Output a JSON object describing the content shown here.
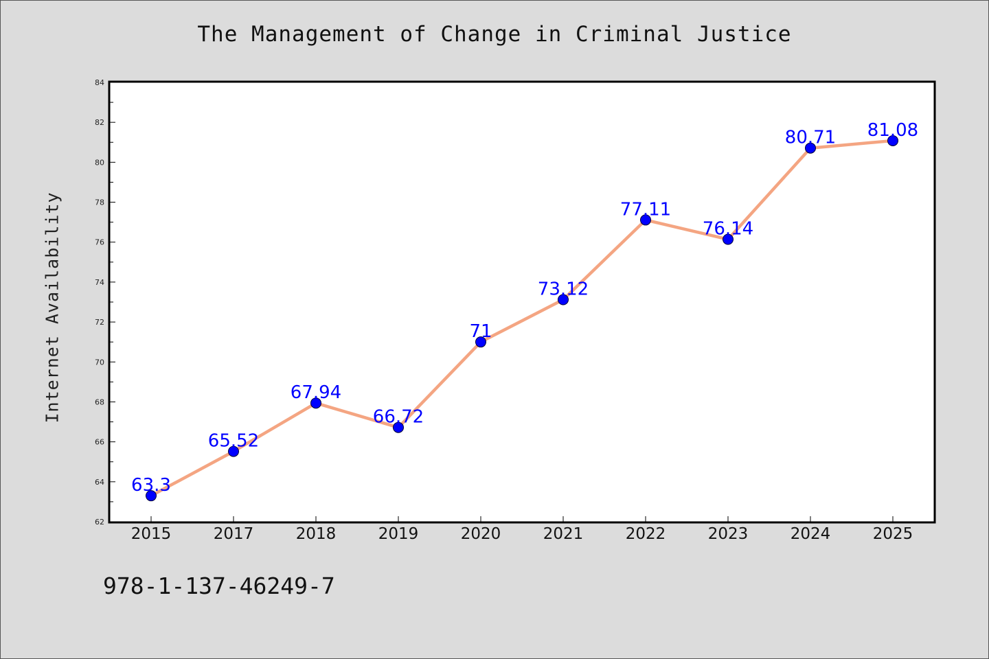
{
  "title": "The Management of Change in Criminal Justice",
  "isbn": "978-1-137-46249-7",
  "colors": {
    "background": "#dcdcdc",
    "plot_background": "#ffffff",
    "line": "#f4a582",
    "marker": "#0000ff",
    "data_label": "#0000ff"
  },
  "chart_data": {
    "type": "line",
    "title": "The Management of Change in Criminal Justice",
    "xlabel": "",
    "ylabel": "Internet Availability",
    "categories": [
      "2015",
      "2017",
      "2018",
      "2019",
      "2020",
      "2021",
      "2022",
      "2023",
      "2024",
      "2025"
    ],
    "series": [
      {
        "values": [
          63.3,
          65.52,
          67.94,
          66.72,
          71,
          73.12,
          77.11,
          76.14,
          80.71,
          81.08
        ],
        "data_labels": [
          "63.3",
          "65.52",
          "67.94",
          "66.72",
          "71",
          "73.12",
          "77.11",
          "76.14",
          "80.71",
          "81.08"
        ]
      }
    ],
    "ylim": [
      62,
      84
    ],
    "yticks": [
      "62",
      "64",
      "66",
      "68",
      "70",
      "72",
      "74",
      "76",
      "78",
      "80",
      "82",
      "84"
    ],
    "grid": false,
    "legend": "none"
  }
}
